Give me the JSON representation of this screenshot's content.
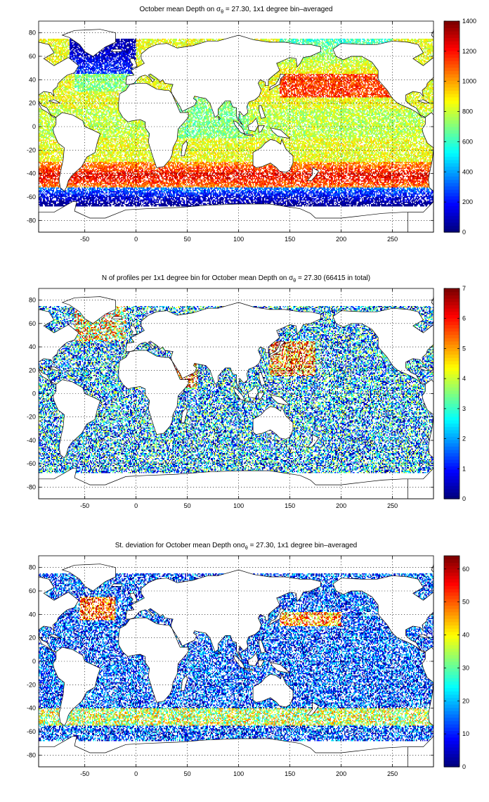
{
  "chart_data": [
    {
      "type": "heatmap",
      "title_pre": "October mean Depth on ",
      "title_sigma": "σ",
      "title_sub": "θ",
      "title_post": " = 27.30, 1x1 degree bin–averaged",
      "xlim": [
        -95,
        290
      ],
      "ylim": [
        -90,
        90
      ],
      "xticks": [
        -50,
        0,
        50,
        100,
        150,
        200,
        250
      ],
      "yticks": [
        80,
        60,
        40,
        20,
        0,
        -20,
        -40,
        -60,
        -80
      ],
      "colorbar": {
        "min": 0,
        "max": 1400,
        "ticks": [
          0,
          200,
          400,
          600,
          800,
          1000,
          1200,
          1400
        ]
      },
      "field": "depth"
    },
    {
      "type": "heatmap",
      "title_pre": "N of profiles per 1x1 degree bin for October mean Depth on ",
      "title_sigma": "σ",
      "title_sub": "θ",
      "title_post": " = 27.30 (66415 in total)",
      "xlim": [
        -95,
        290
      ],
      "ylim": [
        -90,
        90
      ],
      "xticks": [
        -50,
        0,
        50,
        100,
        150,
        200,
        250
      ],
      "yticks": [
        80,
        60,
        40,
        20,
        0,
        -20,
        -40,
        -60,
        -80
      ],
      "colorbar": {
        "min": 0,
        "max": 7,
        "ticks": [
          0,
          1,
          2,
          3,
          4,
          5,
          6,
          7
        ]
      },
      "field": "count"
    },
    {
      "type": "heatmap",
      "title_pre": "St. deviation for October mean Depth on",
      "title_sigma": "σ",
      "title_sub": "θ",
      "title_post": " = 27.30, 1x1 degree bin–averaged",
      "xlim": [
        -95,
        290
      ],
      "ylim": [
        -90,
        90
      ],
      "xticks": [
        -50,
        0,
        50,
        100,
        150,
        200,
        250
      ],
      "yticks": [
        80,
        60,
        40,
        20,
        0,
        -20,
        -40,
        -60,
        -80
      ],
      "colorbar": {
        "min": 0,
        "max": 64,
        "ticks": [
          0,
          10,
          20,
          30,
          40,
          50,
          60
        ]
      },
      "field": "std"
    }
  ]
}
